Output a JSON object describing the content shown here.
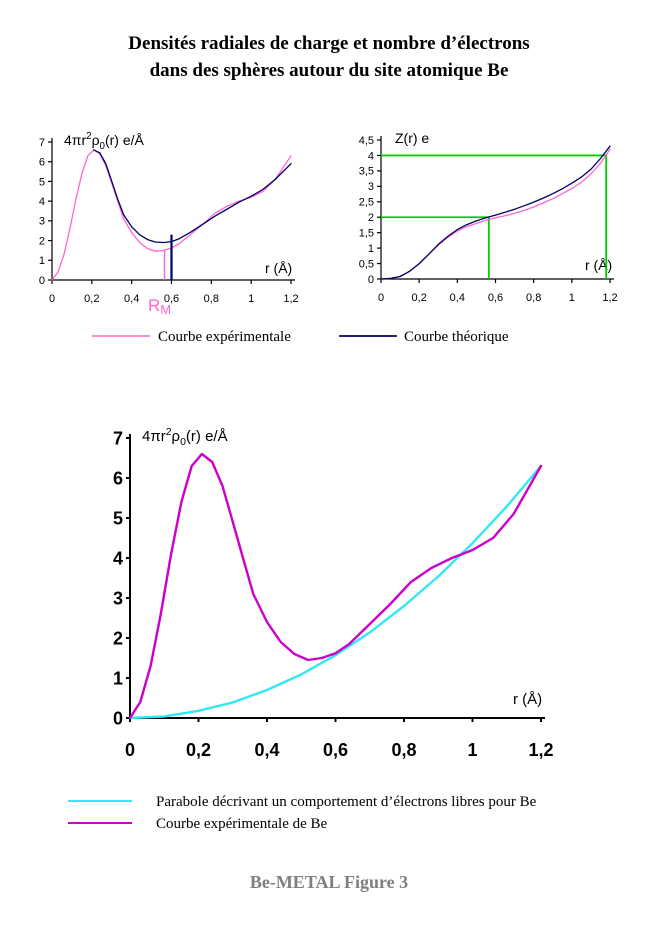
{
  "page": {
    "title_line1": "Densités radiales de charge et nombre d’électrons",
    "title_line2": "dans des sphères autour du site atomique Be",
    "footer": "Be-METAL Figure 3"
  },
  "colors": {
    "experimental": "#ff66cc",
    "theoretical": "#000066",
    "parabola": "#33e8f5",
    "experimental_be": "#cc00cc",
    "guide": "#00cc00"
  },
  "chart_data": [
    {
      "id": "density-top",
      "type": "line",
      "ylabel_prefix": "4πr",
      "ylabel_sup": "2",
      "ylabel_mid": "ρ",
      "ylabel_sub": "0",
      "ylabel_suffix": "(r) e/Å",
      "xlabel": "r (Å)",
      "xlim": [
        0,
        1.2
      ],
      "ylim": [
        0,
        7
      ],
      "xticks": [
        0,
        0.2,
        0.4,
        0.6,
        0.8,
        1,
        1.2
      ],
      "xtick_labels": [
        "0",
        "0,2",
        "0,4",
        "0,6",
        "0,8",
        "1",
        "1,2"
      ],
      "yticks": [
        0,
        1,
        2,
        3,
        4,
        5,
        6,
        7
      ],
      "ytick_labels": [
        "0",
        "1",
        "2",
        "3",
        "4",
        "5",
        "6",
        "7"
      ],
      "annotation": {
        "main": "R",
        "sub": "M",
        "x": 0.565
      },
      "series": [
        {
          "key": "experimental",
          "x": [
            0,
            0.03,
            0.06,
            0.09,
            0.12,
            0.15,
            0.18,
            0.21,
            0.24,
            0.27,
            0.3,
            0.33,
            0.36,
            0.4,
            0.44,
            0.48,
            0.52,
            0.56,
            0.6,
            0.64,
            0.7,
            0.76,
            0.82,
            0.88,
            0.94,
            1.0,
            1.06,
            1.12,
            1.2
          ],
          "y": [
            0,
            0.4,
            1.3,
            2.6,
            4.1,
            5.4,
            6.3,
            6.6,
            6.4,
            5.8,
            4.9,
            4.0,
            3.1,
            2.4,
            1.9,
            1.6,
            1.45,
            1.5,
            1.62,
            1.85,
            2.35,
            2.85,
            3.4,
            3.75,
            4.0,
            4.2,
            4.5,
            5.1,
            6.3
          ]
        },
        {
          "key": "theoretical",
          "x": [
            0.21,
            0.24,
            0.27,
            0.3,
            0.33,
            0.36,
            0.4,
            0.44,
            0.48,
            0.52,
            0.56,
            0.6,
            0.64,
            0.7,
            0.76,
            0.82,
            0.88,
            0.94,
            1.0,
            1.06,
            1.12,
            1.2
          ],
          "y": [
            6.6,
            6.45,
            5.9,
            5.0,
            4.1,
            3.3,
            2.7,
            2.3,
            2.05,
            1.92,
            1.9,
            1.95,
            2.1,
            2.45,
            2.85,
            3.25,
            3.6,
            3.95,
            4.25,
            4.6,
            5.1,
            5.9
          ]
        }
      ],
      "markers": [
        {
          "key": "theoretical",
          "x": 0.6,
          "y_from": 0,
          "y_to": 2.3
        },
        {
          "key": "experimental",
          "x": 0.565,
          "y_from": 0,
          "y_to": 1.5
        }
      ]
    },
    {
      "id": "zr-top",
      "type": "line",
      "ylabel": "Z(r) e",
      "xlabel": "r (Å)",
      "xlim": [
        0,
        1.2
      ],
      "ylim": [
        0,
        4.5
      ],
      "xticks": [
        0,
        0.2,
        0.4,
        0.6,
        0.8,
        1,
        1.2
      ],
      "xtick_labels": [
        "0",
        "0,2",
        "0,4",
        "0,6",
        "0,8",
        "1",
        "1,2"
      ],
      "yticks": [
        0,
        0.5,
        1,
        1.5,
        2,
        2.5,
        3,
        3.5,
        4,
        4.5
      ],
      "ytick_labels": [
        "0",
        "0,5",
        "1",
        "1,5",
        "2",
        "2,5",
        "3",
        "3,5",
        "4",
        "4,5"
      ],
      "series": [
        {
          "key": "experimental",
          "x": [
            0,
            0.05,
            0.1,
            0.15,
            0.2,
            0.25,
            0.3,
            0.35,
            0.4,
            0.45,
            0.5,
            0.55,
            0.6,
            0.65,
            0.7,
            0.75,
            0.8,
            0.85,
            0.9,
            0.95,
            1.0,
            1.05,
            1.1,
            1.15,
            1.2
          ],
          "y": [
            0,
            0.02,
            0.08,
            0.25,
            0.5,
            0.8,
            1.1,
            1.35,
            1.55,
            1.7,
            1.8,
            1.9,
            1.98,
            2.05,
            2.13,
            2.22,
            2.33,
            2.46,
            2.6,
            2.76,
            2.93,
            3.13,
            3.4,
            3.75,
            4.2
          ]
        },
        {
          "key": "theoretical",
          "x": [
            0,
            0.05,
            0.1,
            0.15,
            0.2,
            0.25,
            0.3,
            0.35,
            0.4,
            0.45,
            0.5,
            0.55,
            0.6,
            0.65,
            0.7,
            0.75,
            0.8,
            0.85,
            0.9,
            0.95,
            1.0,
            1.05,
            1.1,
            1.15,
            1.2
          ],
          "y": [
            0,
            0.02,
            0.08,
            0.25,
            0.5,
            0.8,
            1.12,
            1.38,
            1.6,
            1.76,
            1.88,
            1.98,
            2.07,
            2.16,
            2.26,
            2.37,
            2.49,
            2.62,
            2.76,
            2.92,
            3.1,
            3.3,
            3.55,
            3.9,
            4.3
          ]
        }
      ],
      "guides": [
        {
          "x": 0.565,
          "y": 2
        },
        {
          "x": 1.18,
          "y": 4
        }
      ]
    },
    {
      "id": "density-bottom",
      "type": "line",
      "ylabel_prefix": "4πr",
      "ylabel_sup": "2",
      "ylabel_mid": "ρ",
      "ylabel_sub": "0",
      "ylabel_suffix": "(r) e/Å",
      "xlabel": "r (Å)",
      "xlim": [
        0,
        1.2
      ],
      "ylim": [
        0,
        7
      ],
      "xticks": [
        0,
        0.2,
        0.4,
        0.6,
        0.8,
        1,
        1.2
      ],
      "xtick_labels": [
        "0",
        "0,2",
        "0,4",
        "0,6",
        "0,8",
        "1",
        "1,2"
      ],
      "yticks": [
        0,
        1,
        2,
        3,
        4,
        5,
        6,
        7
      ],
      "ytick_labels": [
        "0",
        "1",
        "2",
        "3",
        "4",
        "5",
        "6",
        "7"
      ],
      "series": [
        {
          "key": "parabola",
          "x": [
            0,
            0.1,
            0.2,
            0.3,
            0.4,
            0.5,
            0.6,
            0.7,
            0.8,
            0.9,
            1.0,
            1.1,
            1.2
          ],
          "y": [
            0,
            0.04,
            0.18,
            0.39,
            0.7,
            1.09,
            1.57,
            2.14,
            2.8,
            3.54,
            4.37,
            5.29,
            6.3
          ]
        },
        {
          "key": "experimental_be",
          "x": [
            0,
            0.03,
            0.06,
            0.09,
            0.12,
            0.15,
            0.18,
            0.21,
            0.24,
            0.27,
            0.3,
            0.33,
            0.36,
            0.4,
            0.44,
            0.48,
            0.52,
            0.56,
            0.6,
            0.64,
            0.7,
            0.76,
            0.82,
            0.88,
            0.94,
            1.0,
            1.06,
            1.12,
            1.2
          ],
          "y": [
            0,
            0.4,
            1.3,
            2.6,
            4.1,
            5.4,
            6.3,
            6.6,
            6.4,
            5.8,
            4.9,
            4.0,
            3.1,
            2.4,
            1.9,
            1.6,
            1.45,
            1.5,
            1.62,
            1.85,
            2.35,
            2.85,
            3.4,
            3.75,
            4.0,
            4.2,
            4.5,
            5.1,
            6.3
          ]
        }
      ]
    }
  ],
  "legend_top": [
    {
      "key": "experimental",
      "label": "Courbe expérimentale"
    },
    {
      "key": "theoretical",
      "label": "Courbe théorique"
    }
  ],
  "legend_bottom": [
    {
      "key": "parabola",
      "label": "Parabole décrivant un comportement  d’électrons libres pour Be"
    },
    {
      "key": "experimental_be",
      "label": "Courbe expérimentale de Be"
    }
  ]
}
